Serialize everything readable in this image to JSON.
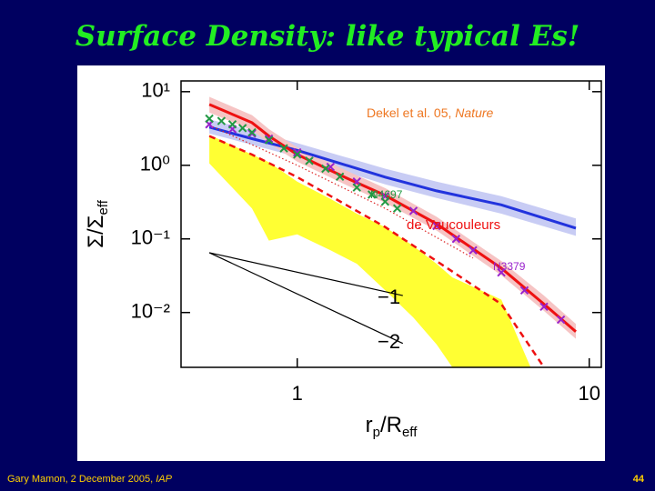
{
  "chart_data": {
    "type": "line",
    "title": "Surface Density: like typical Es!",
    "xscale": "log",
    "yscale": "log",
    "xlim": [
      0.4,
      11
    ],
    "ylim": [
      0.0018,
      14
    ],
    "xticks": [
      1,
      10
    ],
    "yticks": [
      {
        "value": 10,
        "label": "10¹"
      },
      {
        "value": 1,
        "label": "10⁰"
      },
      {
        "value": 0.1,
        "label": "10⁻¹"
      },
      {
        "value": 0.01,
        "label": "10⁻²"
      }
    ],
    "xlabel": {
      "main": "r",
      "sub": "p",
      "rest": "/R",
      "sub2": "eff"
    },
    "ylabel": {
      "main": "Σ/Σ",
      "sub": "eff"
    },
    "bands": [
      {
        "color": "#ffff33",
        "x": [
          0.5,
          0.7,
          0.8,
          1,
          1.3,
          1.6,
          2,
          2.5,
          3,
          3.4,
          5,
          6.3
        ],
        "upper": [
          2.6,
          1.4,
          1.1,
          0.6,
          0.35,
          0.22,
          0.145,
          0.08,
          0.046,
          0.03,
          0.015,
          0.0018
        ],
        "lower": [
          1.06,
          0.26,
          0.095,
          0.115,
          0.07,
          0.046,
          0.02,
          0.0085,
          0.0037,
          0.0018,
          0.0003,
          0.0001
        ]
      },
      {
        "color": "#c8ccf4",
        "x": [
          0.5,
          0.7,
          1,
          2,
          3,
          5,
          9
        ],
        "upper": [
          4.2,
          3.0,
          2.0,
          0.9,
          0.6,
          0.38,
          0.19
        ],
        "lower": [
          2.7,
          1.9,
          1.3,
          0.55,
          0.36,
          0.22,
          0.11
        ]
      },
      {
        "color": "#f6c4c4",
        "x": [
          0.5,
          0.7,
          0.8,
          1,
          1.5,
          2,
          3,
          5,
          7,
          9
        ],
        "upper": [
          8.5,
          4.8,
          3.1,
          1.75,
          0.82,
          0.49,
          0.2,
          0.05,
          0.017,
          0.007
        ],
        "lower": [
          5.2,
          3.0,
          2.0,
          1.12,
          0.52,
          0.31,
          0.13,
          0.032,
          0.0105,
          0.0044
        ]
      }
    ],
    "series": [
      {
        "style": "solid",
        "color": "#2233dd",
        "width": 3,
        "x": [
          0.5,
          0.7,
          1,
          2,
          3,
          5,
          9
        ],
        "values": [
          3.3,
          2.3,
          1.6,
          0.69,
          0.45,
          0.29,
          0.14
        ]
      },
      {
        "style": "dotted",
        "color": "#dd2222",
        "width": 1.2,
        "x": [
          0.5,
          1,
          2,
          4
        ],
        "values": [
          3.5,
          1.0,
          0.26,
          0.055
        ]
      },
      {
        "style": "solid",
        "color": "#ee1111",
        "width": 3,
        "x": [
          0.5,
          0.7,
          0.8,
          1,
          1.5,
          2,
          3,
          5,
          7,
          9
        ],
        "values": [
          6.7,
          3.8,
          2.5,
          1.4,
          0.65,
          0.39,
          0.16,
          0.04,
          0.013,
          0.0055
        ]
      },
      {
        "style": "dashed",
        "color": "#ee1111",
        "width": 2.5,
        "x": [
          0.5,
          0.7,
          1,
          2,
          3,
          5,
          7
        ],
        "values": [
          2.5,
          1.4,
          0.69,
          0.145,
          0.05,
          0.013,
          0.0018
        ]
      },
      {
        "style": "solid",
        "color": "#000000",
        "width": 1.2,
        "x": [
          0.5,
          2.3
        ],
        "values": [
          0.065,
          0.017
        ]
      },
      {
        "style": "solid",
        "color": "#000000",
        "width": 1.2,
        "x": [
          0.5,
          2.3
        ],
        "values": [
          0.065,
          0.0038
        ]
      },
      {
        "style": "markers",
        "color": "#9922cc",
        "width": 2,
        "x": [
          0.5,
          0.6,
          0.7,
          0.8,
          1,
          1.3,
          1.6,
          2,
          2.5,
          3,
          3.5,
          4,
          5,
          6,
          7,
          8
        ],
        "values": [
          3.6,
          3.1,
          2.7,
          2.3,
          1.5,
          0.95,
          0.6,
          0.38,
          0.24,
          0.15,
          0.1,
          0.07,
          0.035,
          0.02,
          0.012,
          0.008
        ]
      },
      {
        "style": "markers",
        "color": "#229944",
        "width": 2,
        "x": [
          0.5,
          0.55,
          0.6,
          0.65,
          0.7,
          0.8,
          0.9,
          1,
          1.1,
          1.25,
          1.4,
          1.6,
          1.8,
          2,
          2.2
        ],
        "values": [
          4.3,
          4.0,
          3.6,
          3.2,
          2.8,
          2.2,
          1.7,
          1.4,
          1.15,
          0.9,
          0.7,
          0.5,
          0.4,
          0.32,
          0.26
        ]
      }
    ],
    "annotations": {
      "citation": "Dekel et al. 05, ",
      "journal": "Nature",
      "n4697": "N4697",
      "devauc": "de Vaucouleurs",
      "n3379": "N3379",
      "slope1": "−1",
      "slope2": "−2"
    }
  },
  "footer": {
    "text": "Gary Mamon, 2 December 2005, ",
    "institute": "IAP",
    "page": "44"
  }
}
